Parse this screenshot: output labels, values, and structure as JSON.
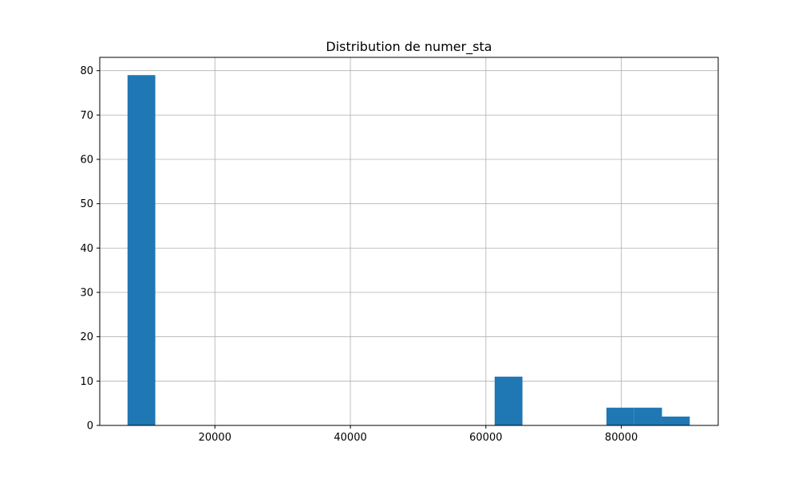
{
  "chart_data": {
    "type": "bar",
    "title": "Distribution de numer_sta",
    "xlabel": "",
    "ylabel": "",
    "xlim": [
      3000,
      94300
    ],
    "ylim": [
      0,
      83
    ],
    "grid": true,
    "bar_color": "#1f77b4",
    "x_ticks": [
      20000,
      40000,
      60000,
      80000
    ],
    "x_tick_labels": [
      "20000",
      "40000",
      "60000",
      "80000"
    ],
    "y_ticks": [
      0,
      10,
      20,
      30,
      40,
      50,
      60,
      70,
      80
    ],
    "y_tick_labels": [
      "0",
      "10",
      "20",
      "30",
      "40",
      "50",
      "60",
      "70",
      "80"
    ],
    "bins": [
      {
        "x0": 7100,
        "x1": 11200,
        "count": 79
      },
      {
        "x0": 61300,
        "x1": 65400,
        "count": 11
      },
      {
        "x0": 77800,
        "x1": 81900,
        "count": 4
      },
      {
        "x0": 81900,
        "x1": 86000,
        "count": 4
      },
      {
        "x0": 86000,
        "x1": 90100,
        "count": 2
      }
    ]
  }
}
